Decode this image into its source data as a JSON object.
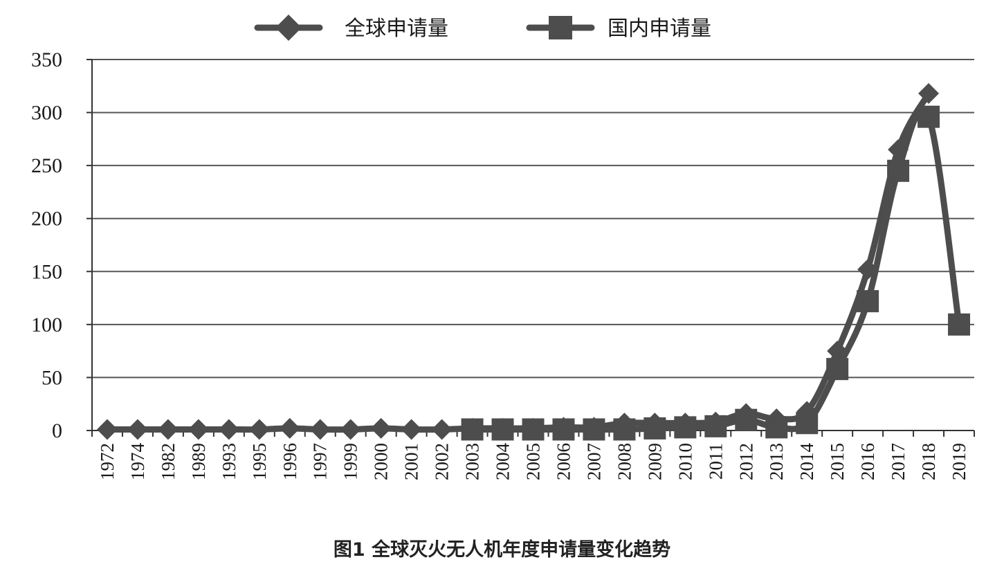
{
  "caption": "图1   全球灭火无人机年度申请量变化趋势",
  "colors": {
    "series": "#4d4d4d",
    "grid": "#555555",
    "axis": "#333333"
  },
  "chart_data": {
    "type": "line",
    "title": "",
    "xlabel": "",
    "ylabel": "",
    "ylim": [
      0,
      350
    ],
    "yticks": [
      0,
      50,
      100,
      150,
      200,
      250,
      300,
      350
    ],
    "grid": true,
    "legend_position": "top",
    "categories": [
      "1972",
      "1974",
      "1982",
      "1989",
      "1993",
      "1995",
      "1996",
      "1997",
      "1999",
      "2000",
      "2001",
      "2002",
      "2003",
      "2004",
      "2005",
      "2006",
      "2007",
      "2008",
      "2009",
      "2010",
      "2011",
      "2012",
      "2013",
      "2014",
      "2015",
      "2016",
      "2017",
      "2018",
      "2019"
    ],
    "series": [
      {
        "name": "全球申请量",
        "marker": "diamond",
        "values": [
          1,
          1,
          1,
          1,
          1,
          1,
          2,
          1,
          1,
          2,
          1,
          1,
          2,
          2,
          2,
          3,
          3,
          7,
          7,
          7,
          8,
          16,
          11,
          18,
          75,
          152,
          265,
          318,
          null
        ]
      },
      {
        "name": "国内申请量",
        "marker": "square",
        "values": [
          null,
          null,
          null,
          null,
          null,
          null,
          null,
          null,
          null,
          null,
          null,
          null,
          1,
          1,
          1,
          1,
          1,
          1,
          2,
          3,
          4,
          10,
          3,
          7,
          58,
          122,
          245,
          296,
          100
        ]
      }
    ]
  }
}
